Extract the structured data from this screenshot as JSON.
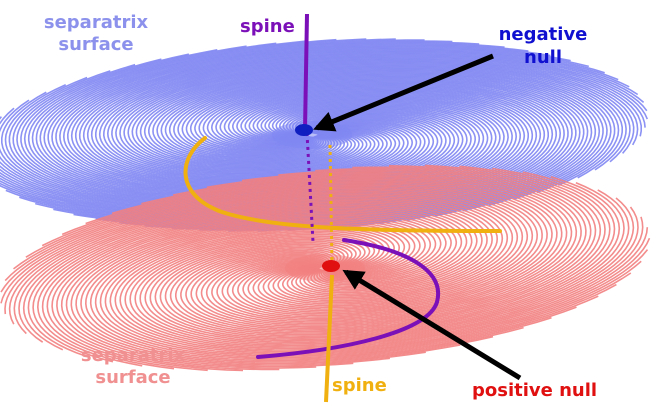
{
  "labels": {
    "separatrix_top": "separatrix\nsurface",
    "separatrix_top_line1": "separatrix",
    "separatrix_top_line2": "surface",
    "spine_top": "spine",
    "negative_null_line1": "negative",
    "negative_null_line2": "null",
    "separatrix_bottom_line1": "separatrix",
    "separatrix_bottom_line2": "surface",
    "spine_bottom": "spine",
    "positive_null": "positive null"
  },
  "colors": {
    "negative_surface": "#7f86f2",
    "positive_surface": "#f27f7f",
    "spine_top": "#7b10b8",
    "spine_bottom": "#f0b010",
    "label_negative_null": "#1010d0",
    "label_positive_null": "#e01010",
    "label_separatrix_top": "#8c92ec",
    "label_separatrix_bottom": "#f09090",
    "label_spine_top": "#7b10b8",
    "label_spine_bottom": "#f0b010",
    "null_negative": "#1020c0",
    "null_positive": "#e01010",
    "arrow": "#000000",
    "fan_line_top": "#f0b010",
    "fan_line_bottom": "#7b10b8"
  }
}
